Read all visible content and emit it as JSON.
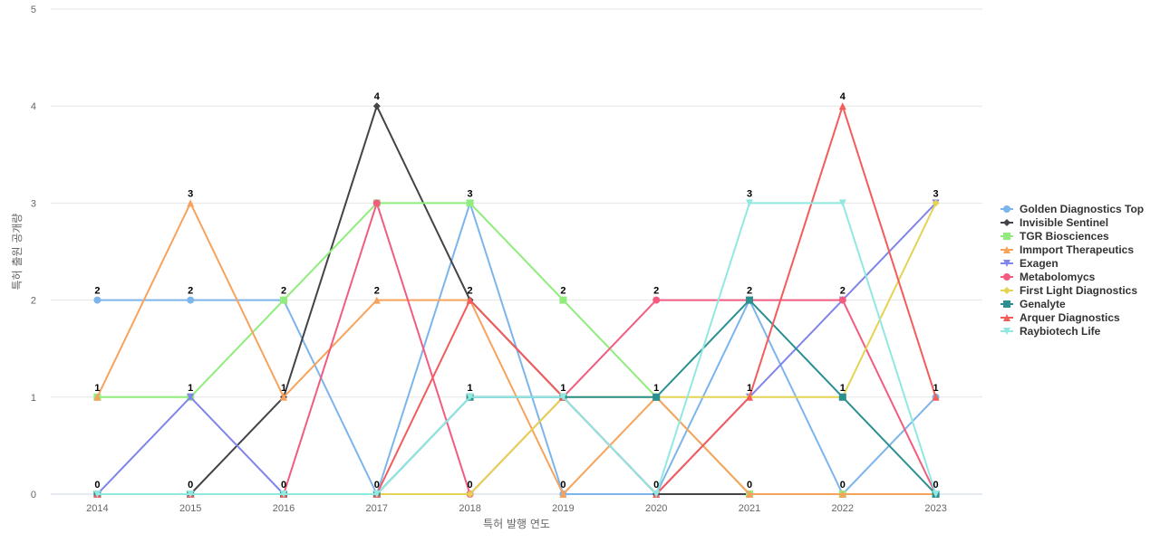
{
  "chart_data": {
    "type": "line",
    "title": "",
    "xlabel": "특허 발행 연도",
    "ylabel": "특허 출원 공개량",
    "ylim": [
      0,
      5
    ],
    "yticks": [
      0,
      1,
      2,
      3,
      4,
      5
    ],
    "grid": true,
    "legend": "right",
    "categories": [
      "2014",
      "2015",
      "2016",
      "2017",
      "2018",
      "2019",
      "2020",
      "2021",
      "2022",
      "2023"
    ],
    "series": [
      {
        "name": "Golden Diagnostics Top",
        "color": "#7cb5ec",
        "marker": "circle",
        "values": [
          2,
          2,
          2,
          0,
          3,
          0,
          0,
          2,
          0,
          1
        ]
      },
      {
        "name": "Invisible Sentinel",
        "color": "#434348",
        "marker": "diamond",
        "values": [
          0,
          0,
          1,
          4,
          2,
          1,
          0,
          0,
          0,
          0
        ]
      },
      {
        "name": "TGR Biosciences",
        "color": "#90ed7d",
        "marker": "square",
        "values": [
          1,
          1,
          2,
          3,
          3,
          2,
          1,
          0,
          0,
          0
        ]
      },
      {
        "name": "Immport Therapeutics",
        "color": "#f7a35c",
        "marker": "triangle",
        "values": [
          1,
          3,
          1,
          2,
          2,
          0,
          1,
          0,
          0,
          0
        ]
      },
      {
        "name": "Exagen",
        "color": "#8085e9",
        "marker": "triangle-down",
        "values": [
          0,
          1,
          0,
          0,
          1,
          1,
          0,
          1,
          2,
          3
        ]
      },
      {
        "name": "Metabolomycs",
        "color": "#f15c80",
        "marker": "circle",
        "values": [
          0,
          0,
          0,
          3,
          0,
          1,
          2,
          2,
          2,
          0
        ]
      },
      {
        "name": "First Light Diagnostics",
        "color": "#e4d354",
        "marker": "diamond",
        "values": [
          0,
          0,
          0,
          0,
          0,
          1,
          1,
          1,
          1,
          3
        ]
      },
      {
        "name": "Genalyte",
        "color": "#2b908f",
        "marker": "square",
        "values": [
          0,
          0,
          0,
          0,
          1,
          1,
          1,
          2,
          1,
          0
        ]
      },
      {
        "name": "Arquer Diagnostics",
        "color": "#f45b5b",
        "marker": "triangle",
        "values": [
          0,
          0,
          0,
          0,
          2,
          1,
          0,
          1,
          4,
          1
        ]
      },
      {
        "name": "Raybiotech Life",
        "color": "#91e8e1",
        "marker": "triangle-down",
        "values": [
          0,
          0,
          0,
          0,
          1,
          1,
          0,
          3,
          3,
          0
        ]
      }
    ],
    "data_labels": [
      2,
      3,
      2,
      4,
      3,
      2,
      2,
      3,
      4,
      3
    ]
  }
}
